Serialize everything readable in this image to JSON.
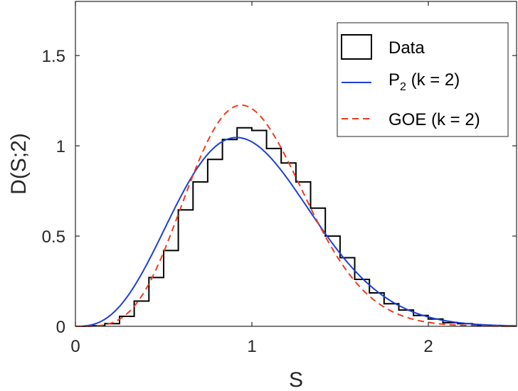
{
  "chart_data": {
    "type": "line",
    "title": "",
    "xlabel": "S",
    "ylabel": "D(S;2)",
    "xlim": [
      0,
      2.5
    ],
    "ylim": [
      0,
      1.8
    ],
    "xticks": [
      0,
      1,
      2
    ],
    "xtick_labels": [
      "0",
      "1",
      "2"
    ],
    "yticks": [
      0,
      0.5,
      1,
      1.5
    ],
    "ytick_labels": [
      "0",
      "0.5",
      "1",
      "1.5"
    ],
    "grid": false,
    "legend_position": "top-right",
    "series": [
      {
        "name": "Data",
        "style": "stairs",
        "color": "#000000",
        "bin_width": 0.0833,
        "bin_edges_start": 0.0,
        "values": [
          0,
          0.003,
          0.015,
          0.055,
          0.14,
          0.27,
          0.42,
          0.645,
          0.8,
          0.925,
          1.035,
          1.1,
          1.085,
          0.985,
          0.905,
          0.8,
          0.655,
          0.5,
          0.38,
          0.26,
          0.185,
          0.125,
          0.09,
          0.06,
          0.04,
          0.02,
          0.015,
          0.005,
          0.002,
          0.001
        ]
      },
      {
        "name": "P",
        "name_subscript": "2",
        "name_suffix": " (k = 2)",
        "style": "solid",
        "color": "#1b3fd6",
        "function": "P2",
        "a": 3.7,
        "b": 2.0,
        "mean": 1.0
      },
      {
        "name": "GOE (k = 2)",
        "style": "dashed",
        "color": "#ef3b1e",
        "function": "GOE",
        "a": 5.0,
        "b": 2.0,
        "mean": 1.0
      }
    ]
  }
}
